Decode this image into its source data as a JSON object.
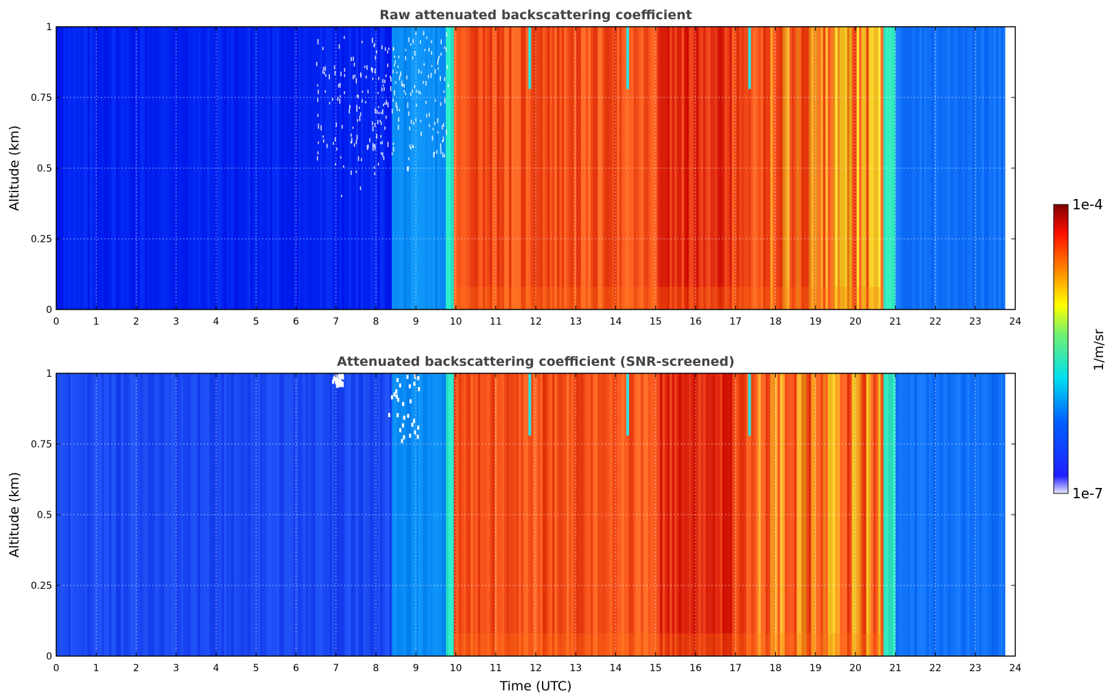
{
  "chart_data": [
    {
      "type": "heatmap",
      "title": "Raw attenuated backscattering coefficient",
      "xlabel": "",
      "ylabel": "Altitude (km)",
      "xlim": [
        0,
        24
      ],
      "ylim": [
        0,
        1
      ],
      "x_ticks": [
        "0",
        "1",
        "2",
        "3",
        "4",
        "5",
        "6",
        "7",
        "8",
        "9",
        "10",
        "11",
        "12",
        "13",
        "14",
        "15",
        "16",
        "17",
        "18",
        "19",
        "20",
        "21",
        "22",
        "23",
        "24"
      ],
      "y_ticks": [
        "0",
        "0.25",
        "0.5",
        "0.75",
        "1"
      ],
      "grid": true,
      "data_end_hour": 23.75,
      "regimes": [
        {
          "start": 0.0,
          "end": 8.4,
          "level": "low",
          "color": "#0022f0"
        },
        {
          "start": 8.4,
          "end": 9.75,
          "level": "low-moderate",
          "color": "#0a8cf5"
        },
        {
          "start": 9.75,
          "end": 9.95,
          "level": "transition",
          "color": "#28e6c8"
        },
        {
          "start": 9.95,
          "end": 20.7,
          "level": "high",
          "color": "#f4501a"
        },
        {
          "start": 20.7,
          "end": 21.0,
          "level": "transition",
          "color": "#32e6c0"
        },
        {
          "start": 21.0,
          "end": 23.75,
          "level": "low-moderate",
          "color": "#1070f8"
        }
      ],
      "peak_band_hours": [
        15.0,
        16.9
      ],
      "cloud_gaps_hours": [
        11.85,
        14.3,
        17.35
      ],
      "noise_speckle_hours": [
        6.5,
        9.8
      ],
      "masked_regions": []
    },
    {
      "type": "heatmap",
      "title": "Attenuated backscattering coefficient (SNR-screened)",
      "xlabel": "Time (UTC)",
      "ylabel": "Altitude (km)",
      "xlim": [
        0,
        24
      ],
      "ylim": [
        0,
        1
      ],
      "x_ticks": [
        "0",
        "1",
        "2",
        "3",
        "4",
        "5",
        "6",
        "7",
        "8",
        "9",
        "10",
        "11",
        "12",
        "13",
        "14",
        "15",
        "16",
        "17",
        "18",
        "19",
        "20",
        "21",
        "22",
        "23",
        "24"
      ],
      "y_ticks": [
        "0",
        "0.25",
        "0.5",
        "0.75",
        "1"
      ],
      "grid": true,
      "data_end_hour": 23.75,
      "regimes": [
        {
          "start": 0.0,
          "end": 8.4,
          "level": "low",
          "color": "#1a48f2"
        },
        {
          "start": 8.4,
          "end": 9.75,
          "level": "low-moderate",
          "color": "#0a8cf5"
        },
        {
          "start": 9.75,
          "end": 9.95,
          "level": "transition",
          "color": "#28e6c8"
        },
        {
          "start": 9.95,
          "end": 20.7,
          "level": "high",
          "color": "#f4501a"
        },
        {
          "start": 20.7,
          "end": 21.0,
          "level": "transition",
          "color": "#32e6c0"
        },
        {
          "start": 21.0,
          "end": 23.75,
          "level": "low-moderate",
          "color": "#1070f8"
        }
      ],
      "peak_band_hours": [
        15.0,
        16.9
      ],
      "cloud_gaps_hours": [
        11.85,
        14.3,
        17.35
      ],
      "noise_speckle_hours": [],
      "masked_regions": [
        {
          "x": [
            6.9,
            7.15
          ],
          "y": [
            0.96,
            1.0
          ]
        },
        {
          "x": [
            8.3,
            9.05
          ],
          "y": [
            0.75,
            1.0
          ]
        }
      ]
    }
  ],
  "colorbar": {
    "label": "1/m/sr",
    "min_label": "1e-7",
    "max_label": "1e-4",
    "scale": "log",
    "colors": [
      "#e8e8ff",
      "#0000ff",
      "#00d0ff",
      "#ffff00",
      "#ff8000",
      "#ff0000",
      "#800000"
    ]
  }
}
